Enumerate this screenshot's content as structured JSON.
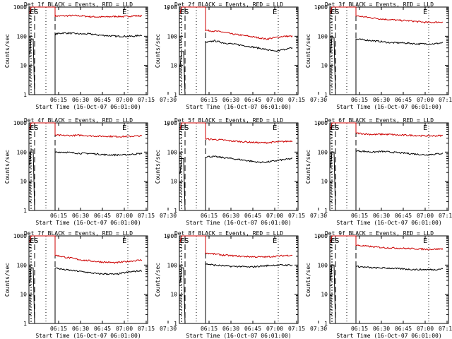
{
  "chart_data": [
    {
      "type": "line",
      "title": "Det 1f BLACK = Events, RED = LLD",
      "xlabel": "Start Time (16-Oct-07 06:01:00)",
      "ylabel": "Counts/sec",
      "yscale": "log",
      "ylim": [
        1,
        1000
      ],
      "xticks": [
        "06:15",
        "06:30",
        "06:45",
        "07:00",
        "07:15",
        "07:30"
      ],
      "y_ticks": [
        "1",
        "10",
        "100",
        "1000"
      ],
      "markers": [
        "E",
        "S",
        "E"
      ],
      "series": [
        {
          "color": "#cc0000",
          "start": 1000,
          "values": [
            490,
            500,
            510,
            500,
            470,
            460,
            460,
            480,
            470,
            500,
            500
          ]
        },
        {
          "color": "#000000",
          "start": 80,
          "values": [
            120,
            130,
            125,
            120,
            120,
            110,
            105,
            100,
            100,
            100,
            110
          ]
        }
      ]
    },
    {
      "type": "line",
      "title": "Det 2f BLACK = Events, RED = LLD",
      "xlabel": "Start Time (16-Oct-07 06:01:00)",
      "ylabel": "Counts/sec",
      "yscale": "log",
      "ylim": [
        1,
        1000
      ],
      "xticks": [
        "06:15",
        "06:30",
        "06:45",
        "07:00",
        "07:15",
        "07:30"
      ],
      "y_ticks": [
        "1",
        "10",
        "100",
        "1000"
      ],
      "markers": [
        "E",
        "S",
        "E"
      ],
      "series": [
        {
          "color": "#cc0000",
          "start": 1000,
          "values": [
            160,
            150,
            140,
            120,
            110,
            100,
            90,
            80,
            90,
            100,
            100
          ]
        },
        {
          "color": "#000000",
          "start": 30,
          "values": [
            60,
            70,
            60,
            55,
            50,
            45,
            40,
            35,
            30,
            35,
            40
          ]
        }
      ]
    },
    {
      "type": "line",
      "title": "Det 3f BLACK = Events, RED = LLD",
      "xlabel": "Start Time (16-Oct-07 06:01:00)",
      "ylabel": "Counts/sec",
      "yscale": "log",
      "ylim": [
        1,
        1000
      ],
      "xticks": [
        "06:15",
        "06:30",
        "06:45",
        "07:00",
        "07:15",
        "07:30"
      ],
      "y_ticks": [
        "1",
        "10",
        "100",
        "1000"
      ],
      "markers": [
        "E",
        "S",
        "E"
      ],
      "series": [
        {
          "color": "#cc0000",
          "start": 1000,
          "values": [
            500,
            460,
            420,
            390,
            370,
            350,
            340,
            320,
            300,
            300,
            310
          ]
        },
        {
          "color": "#000000",
          "start": 90,
          "values": [
            80,
            75,
            70,
            65,
            60,
            60,
            58,
            55,
            55,
            55,
            60
          ]
        }
      ]
    },
    {
      "type": "line",
      "title": "Det 4f BLACK = Events, RED = LLD",
      "xlabel": "Start Time (16-Oct-07 06:01:00)",
      "ylabel": "Counts/sec",
      "yscale": "log",
      "ylim": [
        1,
        1000
      ],
      "xticks": [
        "06:15",
        "06:30",
        "06:45",
        "07:00",
        "07:15",
        "07:30"
      ],
      "y_ticks": [
        "1",
        "10",
        "100",
        "1000"
      ],
      "markers": [
        "E",
        "S",
        "E"
      ],
      "series": [
        {
          "color": "#cc0000",
          "start": 1000,
          "values": [
            380,
            370,
            370,
            380,
            360,
            350,
            350,
            340,
            340,
            350,
            360
          ]
        },
        {
          "color": "#000000",
          "start": 120,
          "values": [
            100,
            100,
            95,
            90,
            90,
            85,
            80,
            80,
            80,
            85,
            90
          ]
        }
      ]
    },
    {
      "type": "line",
      "title": "Det 5f BLACK = Events, RED = LLD",
      "xlabel": "Start Time (16-Oct-07 06:01:00)",
      "ylabel": "Counts/sec",
      "yscale": "log",
      "ylim": [
        1,
        1000
      ],
      "xticks": [
        "06:15",
        "06:30",
        "06:45",
        "07:00",
        "07:15",
        "07:30"
      ],
      "y_ticks": [
        "1",
        "10",
        "100",
        "1000"
      ],
      "markers": [
        "E",
        "S",
        "E"
      ],
      "series": [
        {
          "color": "#cc0000",
          "start": 1000,
          "values": [
            280,
            270,
            260,
            240,
            230,
            220,
            210,
            210,
            220,
            230,
            240
          ]
        },
        {
          "color": "#000000",
          "start": 60,
          "values": [
            70,
            70,
            65,
            60,
            55,
            50,
            45,
            45,
            50,
            55,
            60
          ]
        }
      ]
    },
    {
      "type": "line",
      "title": "Det 6f BLACK = Events, RED = LLD",
      "xlabel": "Start Time (16-Oct-07 06:01:00)",
      "ylabel": "Counts/sec",
      "yscale": "log",
      "ylim": [
        1,
        1000
      ],
      "xticks": [
        "06:15",
        "06:30",
        "06:45",
        "07:00",
        "07:15",
        "07:30"
      ],
      "y_ticks": [
        "1",
        "10",
        "100",
        "1000"
      ],
      "markers": [
        "E",
        "S",
        "E"
      ],
      "series": [
        {
          "color": "#cc0000",
          "start": 1000,
          "values": [
            450,
            420,
            400,
            410,
            400,
            380,
            380,
            370,
            360,
            360,
            370
          ]
        },
        {
          "color": "#000000",
          "start": 100,
          "values": [
            110,
            105,
            100,
            105,
            100,
            95,
            90,
            85,
            80,
            85,
            90
          ]
        }
      ]
    },
    {
      "type": "line",
      "title": "Det 7f BLACK = Events, RED = LLD",
      "xlabel": "Start Time (16-Oct-07 06:01:00)",
      "ylabel": "Counts/sec",
      "yscale": "log",
      "ylim": [
        1,
        1000
      ],
      "xticks": [
        "06:15",
        "06:30",
        "06:45",
        "07:00",
        "07:15",
        "07:30"
      ],
      "y_ticks": [
        "1",
        "10",
        "100",
        "1000"
      ],
      "markers": [
        "E",
        "S",
        "E"
      ],
      "series": [
        {
          "color": "#cc0000",
          "start": 1000,
          "values": [
            220,
            190,
            170,
            150,
            140,
            130,
            125,
            120,
            130,
            140,
            150
          ]
        },
        {
          "color": "#000000",
          "start": 80,
          "values": [
            80,
            70,
            65,
            60,
            55,
            50,
            50,
            48,
            55,
            60,
            65
          ]
        }
      ]
    },
    {
      "type": "line",
      "title": "Det 8f BLACK = Events, RED = LLD",
      "xlabel": "Start Time (16-Oct-07 06:01:00)",
      "ylabel": "Counts/sec",
      "yscale": "log",
      "ylim": [
        1,
        1000
      ],
      "xticks": [
        "06:15",
        "06:30",
        "06:45",
        "07:00",
        "07:15",
        "07:30"
      ],
      "y_ticks": [
        "1",
        "10",
        "100",
        "1000"
      ],
      "markers": [
        "E",
        "S",
        "E"
      ],
      "series": [
        {
          "color": "#cc0000",
          "start": 1000,
          "values": [
            260,
            240,
            220,
            210,
            200,
            195,
            190,
            190,
            200,
            210,
            220
          ]
        },
        {
          "color": "#000000",
          "start": 80,
          "values": [
            110,
            100,
            95,
            90,
            90,
            85,
            90,
            95,
            100,
            100,
            100
          ]
        }
      ]
    },
    {
      "type": "line",
      "title": "Det 9f BLACK = Events, RED = LLD",
      "xlabel": "Start Time (16-Oct-07 06:01:00)",
      "ylabel": "Counts/sec",
      "yscale": "log",
      "ylim": [
        1,
        1000
      ],
      "xticks": [
        "06:15",
        "06:30",
        "06:45",
        "07:00",
        "07:15",
        "07:30"
      ],
      "y_ticks": [
        "1",
        "10",
        "100",
        "1000"
      ],
      "markers": [
        "E",
        "S",
        "E"
      ],
      "series": [
        {
          "color": "#cc0000",
          "start": 1000,
          "values": [
            480,
            450,
            420,
            400,
            390,
            380,
            370,
            360,
            350,
            350,
            360
          ]
        },
        {
          "color": "#000000",
          "start": 100,
          "values": [
            90,
            85,
            80,
            80,
            78,
            75,
            72,
            70,
            70,
            70,
            75
          ]
        }
      ]
    }
  ]
}
